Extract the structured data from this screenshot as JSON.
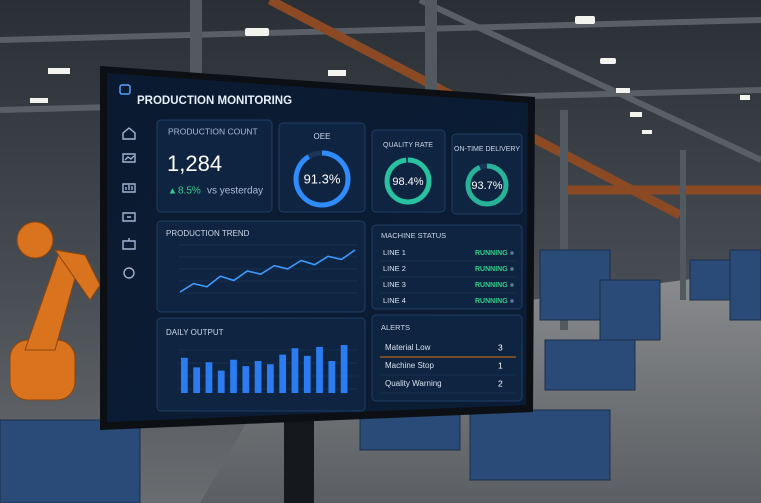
{
  "header": {
    "title": "PRODUCTION MONITORING"
  },
  "production_count": {
    "label": "PRODUCTION COUNT",
    "value": "1,284",
    "change": "8.5%",
    "change_note": "vs yesterday"
  },
  "gauges": [
    {
      "label": "OEE",
      "value": 91.3,
      "display": "91.3%",
      "color": "#2f8cff"
    },
    {
      "label": "QUALITY RATE",
      "value": 98.4,
      "display": "98.4%",
      "color": "#27c2a0"
    },
    {
      "label": "ON-TIME DELIVERY",
      "value": 93.7,
      "display": "93.7%",
      "color": "#27b39a"
    }
  ],
  "production_trend": {
    "title": "PRODUCTION TREND",
    "values": [
      20,
      28,
      25,
      35,
      31,
      40,
      37,
      45,
      42,
      50,
      46,
      54,
      51,
      60
    ]
  },
  "daily_output": {
    "title": "DAILY OUTPUT",
    "values": [
      55,
      40,
      48,
      35,
      52,
      42,
      50,
      45,
      60,
      70,
      58,
      72,
      50,
      75
    ]
  },
  "machine_status": {
    "title": "MACHINE STATUS",
    "rows": [
      {
        "line": "LINE 1",
        "status": "RUNNING"
      },
      {
        "line": "LINE 2",
        "status": "RUNNING"
      },
      {
        "line": "LINE 3",
        "status": "RUNNING"
      },
      {
        "line": "LINE 4",
        "status": "RUNNING"
      }
    ]
  },
  "alerts": {
    "title": "ALERTS",
    "rows": [
      {
        "name": "Material Low",
        "count": "3"
      },
      {
        "name": "Machine Stop",
        "count": "1"
      },
      {
        "name": "Quality Warning",
        "count": "2"
      }
    ]
  }
}
